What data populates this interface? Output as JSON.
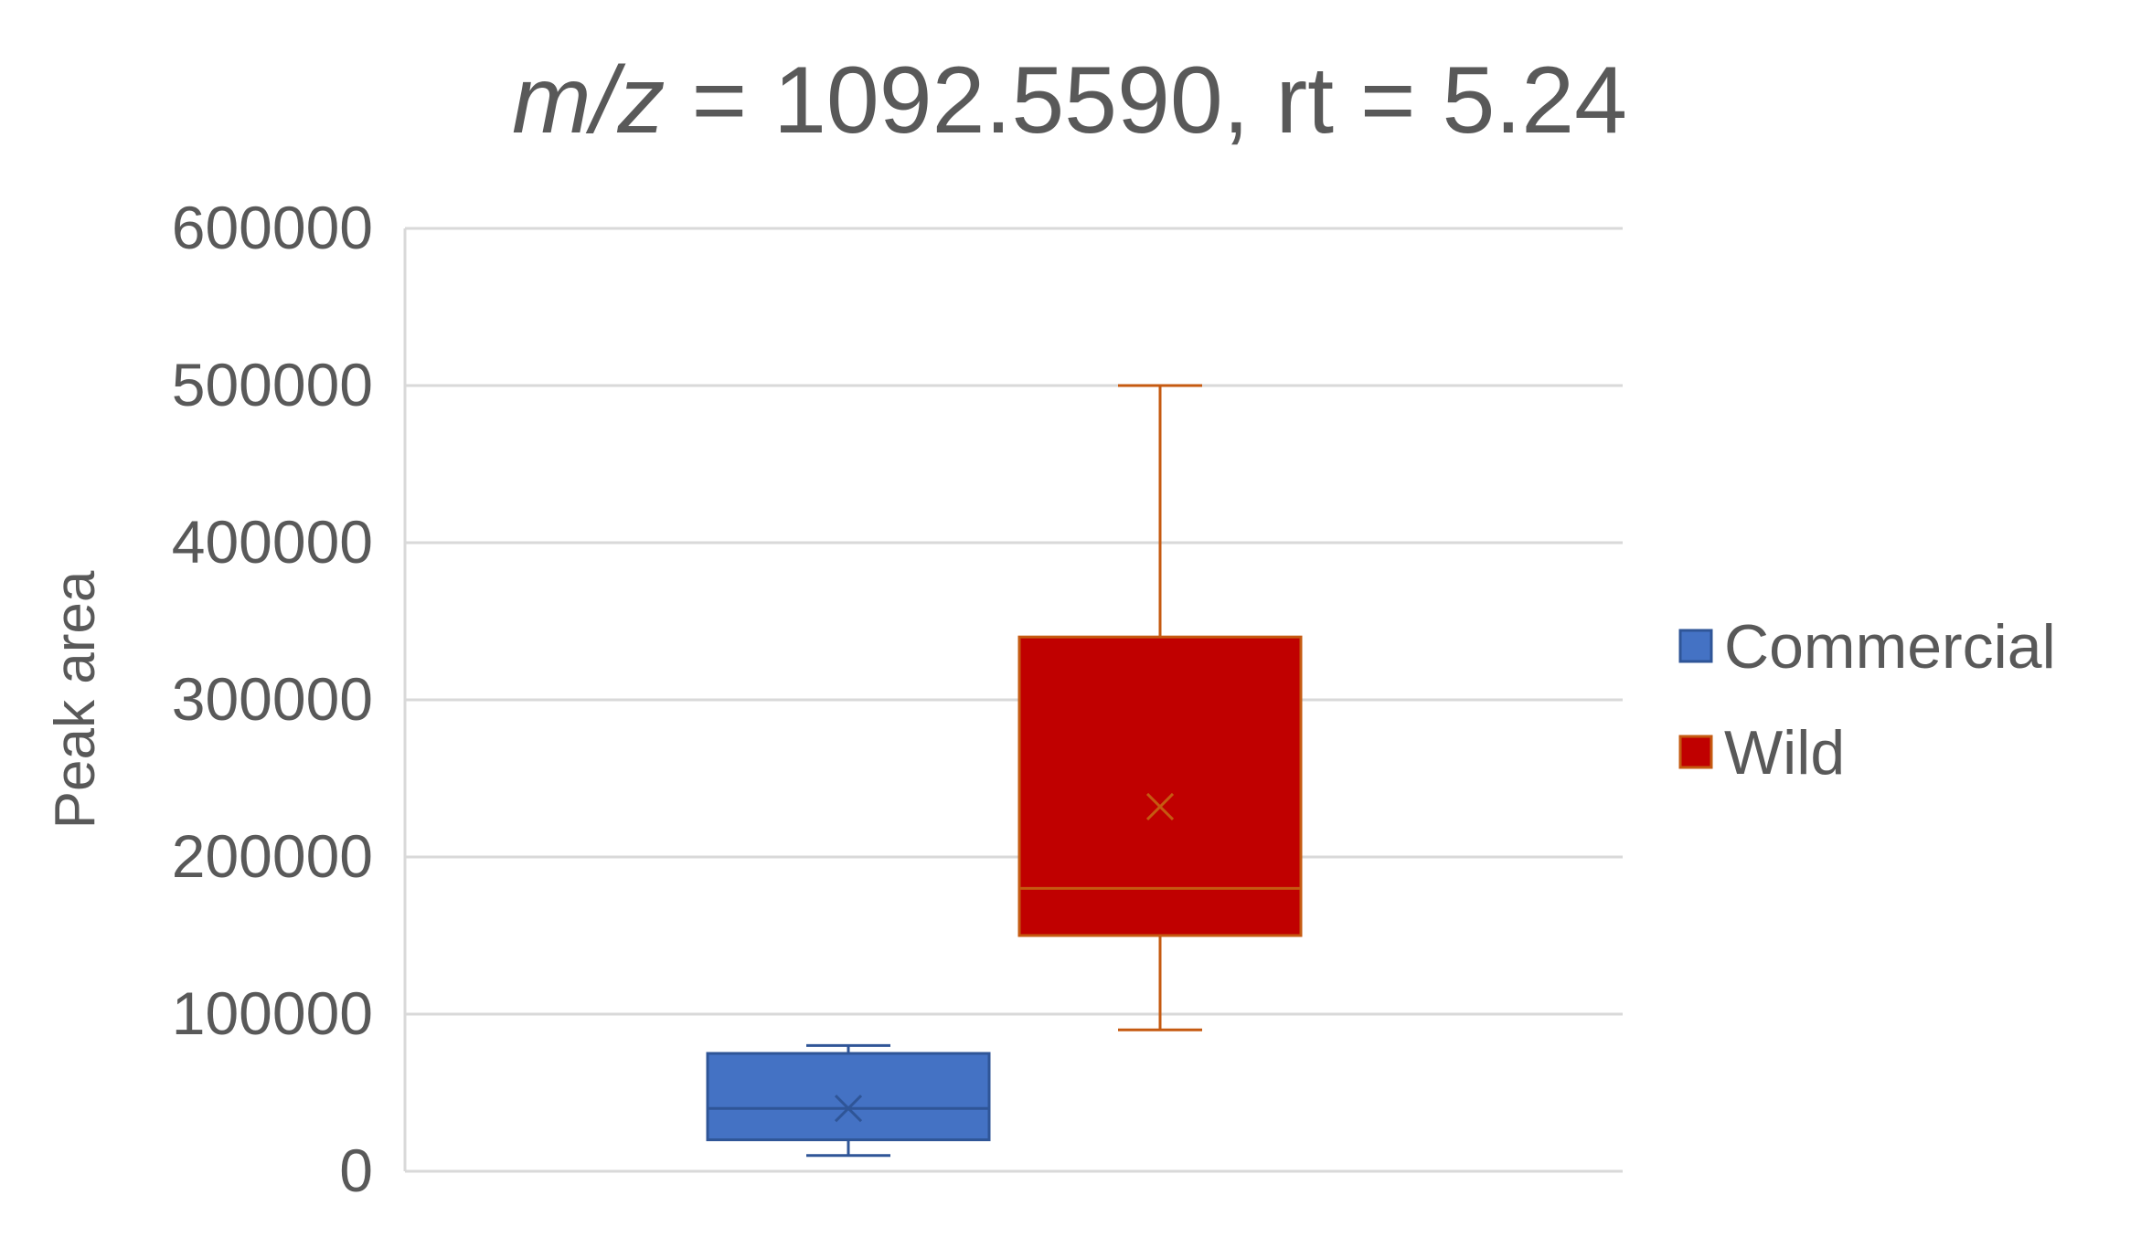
{
  "chart_data": {
    "type": "box",
    "title": {
      "italic_part": "m/z",
      "rest": " = 1092.5590, rt = 5.24"
    },
    "xlabel": "",
    "ylabel": "Peak area",
    "ylim": [
      0,
      600000
    ],
    "yticks": [
      0,
      100000,
      200000,
      300000,
      400000,
      500000,
      600000
    ],
    "ytick_labels": [
      "0",
      "100000",
      "200000",
      "300000",
      "400000",
      "500000",
      "600000"
    ],
    "grid": true,
    "legend_position": "right",
    "series": [
      {
        "name": "Commercial",
        "color": "#4472C4",
        "edge_color": "#2F5597",
        "whisker_min": 10000,
        "q1": 20000,
        "median": 40000,
        "mean": 40000,
        "q3": 75000,
        "whisker_max": 80000
      },
      {
        "name": "Wild",
        "color": "#C00000",
        "edge_color": "#C55A11",
        "whisker_min": 90000,
        "q1": 150000,
        "median": 180000,
        "mean": 232000,
        "q3": 340000,
        "whisker_max": 500000
      }
    ]
  }
}
